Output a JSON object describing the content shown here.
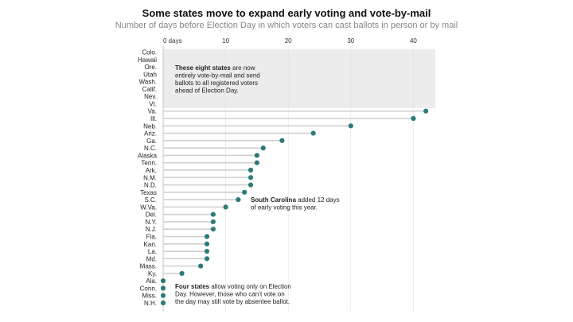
{
  "title": "Some states move to expand early voting and vote-by-mail",
  "subtitle": "Number of days before Election Day in which voters can cast ballots in person or by mail",
  "colors": {
    "dot": "#2e7a7a",
    "line": "#d0d0d0",
    "shade": "#ececec"
  },
  "chart_data": {
    "type": "scatter",
    "x_ticks": [
      "0 days",
      "10",
      "20",
      "30",
      "40"
    ],
    "xlim": [
      0,
      43
    ],
    "categories": [
      "Colo.",
      "Hawaii",
      "Ore.",
      "Utah",
      "Wash.",
      "Calif.",
      "Nev.",
      "Vt.",
      "Va.",
      "Ill.",
      "Neb.",
      "Ariz.",
      "Ga.",
      "N.C.",
      "Alaska",
      "Tenn.",
      "Ark.",
      "N.M.",
      "N.D.",
      "Texas",
      "S.C.",
      "W.Va.",
      "Del.",
      "N.Y.",
      "N.J.",
      "Fla.",
      "Kan.",
      "La.",
      "Md.",
      "Mass.",
      "Ky.",
      "Ala.",
      "Conn.",
      "Miss.",
      "N.H."
    ],
    "values": [
      null,
      null,
      null,
      null,
      null,
      null,
      null,
      null,
      42,
      40,
      30,
      24,
      19,
      16,
      15,
      15,
      14,
      14,
      14,
      13,
      12,
      10,
      8,
      8,
      8,
      7,
      7,
      7,
      7,
      6,
      3,
      0,
      0,
      0,
      0
    ],
    "annotations": [
      {
        "bold": "These eight states",
        "text": [
          "are now",
          "entirely vote-by-mail and send",
          "ballots to all registered voters",
          "ahead of Election Day."
        ]
      },
      {
        "bold": "South Carolina",
        "text": [
          "added 12 days",
          "of early voting this year."
        ]
      },
      {
        "bold": "Four states",
        "text": [
          "allow voting only on Election",
          "Day. However, those who can’t vote on",
          "the day may still vote by absentee ballot."
        ]
      }
    ]
  }
}
